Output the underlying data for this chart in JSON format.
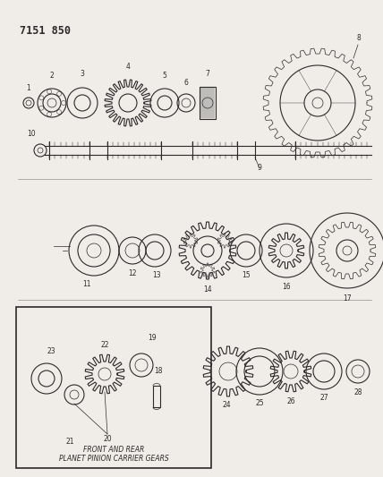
{
  "title": "7151 850",
  "bg_color": "#f0ede8",
  "line_color": "#2a2a2a",
  "box_text_line1": "FRONT AND REAR",
  "box_text_line2": "PLANET PINION CARRIER GEARS",
  "figsize": [
    4.28,
    5.33
  ],
  "dpi": 100
}
